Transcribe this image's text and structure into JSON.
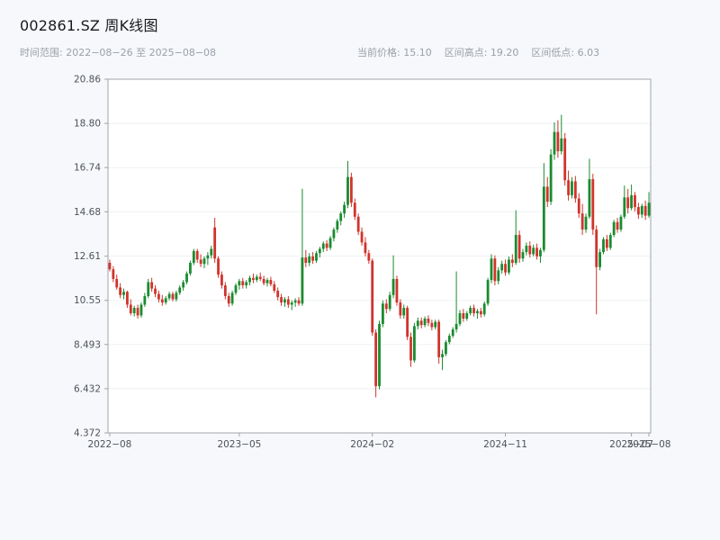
{
  "header": {
    "title": "002861.SZ 周K线图",
    "date_range": "时间范围: 2022−08−26 至 2025−08−08",
    "stats": {
      "current": "当前价格: 15.10",
      "high": "区间高点: 19.20",
      "low": "区间低点: 6.03"
    }
  },
  "chart_data": {
    "type": "candlestick",
    "title": "002861.SZ 周K线图",
    "interval": "weekly",
    "symbol": "002861.SZ",
    "current_price": 15.1,
    "range_high": 19.2,
    "range_low": 6.03,
    "up_color": "#1a8b2f",
    "down_color": "#d0342c",
    "grid": true,
    "y_axis": {
      "min": 4.372,
      "max": 20.86,
      "tick_labels": [
        "4.372",
        "6.432",
        "8.493",
        "10.55",
        "12.61",
        "14.68",
        "16.74",
        "18.80",
        "20.86"
      ]
    },
    "x_axis": {
      "ticks": [
        {
          "label": "2022−08",
          "index": 0
        },
        {
          "label": "2023−05",
          "index": 37
        },
        {
          "label": "2024−02",
          "index": 75
        },
        {
          "label": "2024−11",
          "index": 113
        },
        {
          "label": "2025−07",
          "index": 149
        },
        {
          "label": "2025−08",
          "index": 154
        }
      ]
    },
    "ohlc": [
      [
        12.3,
        12.45,
        11.9,
        12.0
      ],
      [
        12.0,
        12.15,
        11.4,
        11.55
      ],
      [
        11.55,
        11.75,
        11.05,
        11.15
      ],
      [
        11.15,
        11.35,
        10.65,
        10.8
      ],
      [
        10.8,
        11.1,
        10.6,
        10.95
      ],
      [
        10.95,
        11.0,
        10.2,
        10.35
      ],
      [
        10.35,
        10.6,
        9.85,
        9.95
      ],
      [
        9.95,
        10.3,
        9.8,
        10.2
      ],
      [
        10.2,
        10.35,
        9.7,
        9.85
      ],
      [
        9.85,
        10.45,
        9.75,
        10.35
      ],
      [
        10.35,
        10.9,
        10.25,
        10.75
      ],
      [
        10.75,
        11.55,
        10.65,
        11.4
      ],
      [
        11.4,
        11.6,
        10.95,
        11.1
      ],
      [
        11.1,
        11.25,
        10.7,
        10.85
      ],
      [
        10.85,
        11.0,
        10.45,
        10.6
      ],
      [
        10.6,
        10.8,
        10.3,
        10.45
      ],
      [
        10.45,
        10.75,
        10.35,
        10.65
      ],
      [
        10.65,
        10.95,
        10.55,
        10.85
      ],
      [
        10.85,
        10.95,
        10.5,
        10.6
      ],
      [
        10.6,
        11.0,
        10.5,
        10.9
      ],
      [
        10.9,
        11.25,
        10.8,
        11.15
      ],
      [
        11.15,
        11.5,
        11.0,
        11.4
      ],
      [
        11.4,
        11.9,
        11.3,
        11.8
      ],
      [
        11.8,
        12.4,
        11.7,
        12.3
      ],
      [
        12.3,
        12.95,
        12.2,
        12.85
      ],
      [
        12.85,
        12.95,
        12.3,
        12.45
      ],
      [
        12.45,
        12.7,
        12.1,
        12.25
      ],
      [
        12.25,
        12.6,
        12.05,
        12.5
      ],
      [
        12.5,
        12.8,
        12.2,
        12.65
      ],
      [
        12.65,
        13.1,
        12.5,
        12.95
      ],
      [
        13.95,
        14.4,
        12.3,
        12.5
      ],
      [
        12.5,
        12.6,
        11.6,
        11.75
      ],
      [
        11.75,
        11.9,
        11.1,
        11.25
      ],
      [
        11.25,
        11.4,
        10.6,
        10.75
      ],
      [
        10.75,
        10.9,
        10.25,
        10.4
      ],
      [
        10.4,
        11.0,
        10.3,
        10.9
      ],
      [
        10.9,
        11.35,
        10.8,
        11.25
      ],
      [
        11.25,
        11.55,
        11.05,
        11.45
      ],
      [
        11.45,
        11.6,
        11.1,
        11.25
      ],
      [
        11.25,
        11.5,
        11.1,
        11.4
      ],
      [
        11.4,
        11.7,
        11.25,
        11.6
      ],
      [
        11.6,
        11.8,
        11.35,
        11.5
      ],
      [
        11.5,
        11.75,
        11.4,
        11.65
      ],
      [
        11.65,
        11.85,
        11.45,
        11.55
      ],
      [
        11.55,
        11.7,
        11.25,
        11.35
      ],
      [
        11.35,
        11.6,
        11.2,
        11.5
      ],
      [
        11.5,
        11.65,
        11.2,
        11.3
      ],
      [
        11.3,
        11.45,
        10.9,
        11.0
      ],
      [
        11.0,
        11.15,
        10.55,
        10.7
      ],
      [
        10.7,
        10.85,
        10.3,
        10.45
      ],
      [
        10.45,
        10.7,
        10.25,
        10.6
      ],
      [
        10.6,
        10.75,
        10.2,
        10.35
      ],
      [
        10.35,
        10.55,
        10.1,
        10.45
      ],
      [
        10.45,
        10.65,
        10.25,
        10.55
      ],
      [
        10.55,
        10.7,
        10.3,
        10.4
      ],
      [
        10.4,
        15.75,
        10.3,
        12.55
      ],
      [
        12.55,
        12.9,
        12.1,
        12.3
      ],
      [
        12.3,
        12.75,
        12.15,
        12.6
      ],
      [
        12.6,
        12.8,
        12.25,
        12.4
      ],
      [
        12.4,
        12.85,
        12.3,
        12.75
      ],
      [
        12.75,
        13.05,
        12.55,
        12.95
      ],
      [
        12.95,
        13.3,
        12.8,
        13.2
      ],
      [
        13.2,
        13.35,
        12.85,
        13.0
      ],
      [
        13.0,
        13.55,
        12.9,
        13.45
      ],
      [
        13.45,
        13.95,
        13.3,
        13.85
      ],
      [
        13.85,
        14.35,
        13.7,
        14.25
      ],
      [
        14.25,
        14.7,
        14.05,
        14.6
      ],
      [
        14.6,
        15.15,
        14.4,
        15.0
      ],
      [
        15.0,
        17.05,
        14.85,
        16.3
      ],
      [
        16.3,
        16.5,
        14.9,
        15.1
      ],
      [
        15.1,
        15.3,
        14.3,
        14.45
      ],
      [
        14.45,
        14.6,
        13.6,
        13.75
      ],
      [
        13.75,
        13.95,
        13.1,
        13.25
      ],
      [
        13.25,
        13.5,
        12.6,
        12.75
      ],
      [
        12.75,
        12.9,
        12.25,
        12.4
      ],
      [
        12.4,
        12.5,
        8.9,
        9.05
      ],
      [
        9.05,
        9.2,
        6.03,
        6.55
      ],
      [
        6.55,
        9.6,
        6.4,
        9.45
      ],
      [
        9.45,
        10.55,
        9.3,
        10.4
      ],
      [
        10.4,
        10.6,
        9.95,
        10.15
      ],
      [
        10.15,
        10.95,
        10.05,
        10.8
      ],
      [
        10.8,
        12.65,
        10.65,
        11.55
      ],
      [
        11.55,
        11.7,
        10.3,
        10.45
      ],
      [
        10.45,
        10.6,
        9.7,
        9.85
      ],
      [
        9.85,
        10.35,
        9.7,
        10.2
      ],
      [
        10.2,
        10.3,
        8.7,
        8.85
      ],
      [
        8.85,
        9.05,
        7.45,
        7.75
      ],
      [
        7.75,
        9.5,
        7.65,
        9.35
      ],
      [
        9.35,
        9.75,
        9.2,
        9.6
      ],
      [
        9.6,
        9.75,
        9.25,
        9.4
      ],
      [
        9.4,
        9.8,
        9.3,
        9.7
      ],
      [
        9.7,
        9.85,
        9.35,
        9.5
      ],
      [
        9.5,
        9.65,
        9.15,
        9.3
      ],
      [
        9.3,
        9.65,
        9.2,
        9.55
      ],
      [
        9.55,
        9.65,
        7.6,
        7.9
      ],
      [
        7.9,
        8.25,
        7.3,
        8.05
      ],
      [
        8.05,
        8.7,
        7.95,
        8.6
      ],
      [
        8.6,
        9.0,
        8.5,
        8.9
      ],
      [
        8.9,
        9.3,
        8.8,
        9.2
      ],
      [
        9.2,
        11.9,
        9.05,
        9.45
      ],
      [
        9.45,
        10.1,
        9.35,
        9.95
      ],
      [
        9.95,
        10.15,
        9.55,
        9.7
      ],
      [
        9.7,
        10.05,
        9.6,
        9.95
      ],
      [
        9.95,
        10.3,
        9.85,
        10.2
      ],
      [
        10.2,
        10.35,
        9.8,
        9.95
      ],
      [
        9.95,
        10.15,
        9.7,
        10.05
      ],
      [
        10.05,
        10.2,
        9.75,
        9.9
      ],
      [
        9.9,
        10.5,
        9.8,
        10.4
      ],
      [
        10.4,
        11.6,
        10.3,
        11.5
      ],
      [
        11.5,
        12.7,
        11.35,
        12.5
      ],
      [
        12.5,
        12.65,
        11.25,
        11.45
      ],
      [
        11.45,
        12.1,
        11.3,
        11.95
      ],
      [
        11.95,
        12.4,
        11.8,
        12.25
      ],
      [
        12.25,
        12.45,
        11.7,
        11.85
      ],
      [
        11.85,
        12.6,
        11.75,
        12.45
      ],
      [
        12.45,
        12.7,
        12.1,
        12.3
      ],
      [
        12.3,
        14.75,
        12.2,
        13.6
      ],
      [
        13.6,
        13.8,
        12.3,
        12.5
      ],
      [
        12.5,
        12.95,
        12.35,
        12.8
      ],
      [
        12.8,
        13.25,
        12.65,
        13.1
      ],
      [
        13.1,
        13.3,
        12.55,
        12.7
      ],
      [
        12.7,
        13.15,
        12.6,
        13.0
      ],
      [
        13.0,
        13.2,
        12.45,
        12.6
      ],
      [
        12.6,
        13.0,
        12.3,
        12.9
      ],
      [
        12.9,
        16.95,
        12.8,
        15.85
      ],
      [
        15.85,
        16.3,
        14.9,
        15.15
      ],
      [
        15.15,
        17.6,
        15.0,
        17.35
      ],
      [
        17.35,
        18.85,
        17.1,
        18.4
      ],
      [
        18.4,
        18.95,
        17.2,
        17.5
      ],
      [
        17.5,
        19.2,
        17.35,
        18.1
      ],
      [
        18.1,
        18.35,
        15.9,
        16.15
      ],
      [
        16.15,
        16.6,
        15.2,
        15.45
      ],
      [
        15.45,
        16.3,
        15.3,
        16.1
      ],
      [
        16.1,
        16.35,
        15.1,
        15.3
      ],
      [
        15.3,
        15.55,
        14.4,
        14.6
      ],
      [
        14.6,
        15.05,
        13.6,
        13.85
      ],
      [
        13.85,
        14.6,
        13.7,
        14.45
      ],
      [
        14.45,
        17.15,
        14.35,
        16.2
      ],
      [
        16.2,
        16.45,
        13.6,
        13.85
      ],
      [
        13.85,
        14.05,
        9.9,
        12.1
      ],
      [
        12.1,
        12.95,
        11.95,
        12.8
      ],
      [
        12.8,
        13.5,
        12.7,
        13.4
      ],
      [
        13.4,
        13.6,
        12.85,
        13.0
      ],
      [
        13.0,
        13.7,
        12.9,
        13.6
      ],
      [
        13.6,
        14.3,
        13.5,
        14.2
      ],
      [
        14.2,
        14.4,
        13.7,
        13.85
      ],
      [
        13.85,
        14.55,
        13.75,
        14.45
      ],
      [
        14.45,
        15.9,
        14.35,
        15.35
      ],
      [
        15.35,
        15.75,
        14.6,
        14.85
      ],
      [
        14.85,
        15.95,
        14.75,
        15.45
      ],
      [
        15.45,
        15.6,
        14.7,
        14.9
      ],
      [
        14.9,
        15.1,
        14.35,
        14.55
      ],
      [
        14.55,
        15.05,
        14.4,
        14.95
      ],
      [
        14.95,
        15.2,
        14.3,
        14.5
      ],
      [
        14.5,
        15.6,
        14.4,
        15.1
      ]
    ]
  }
}
